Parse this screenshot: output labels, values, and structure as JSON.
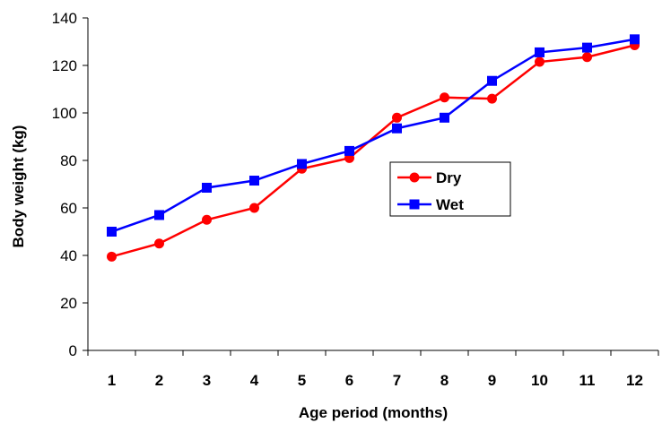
{
  "chart_data": {
    "type": "line",
    "x": [
      1,
      2,
      3,
      4,
      5,
      6,
      7,
      8,
      9,
      10,
      11,
      12
    ],
    "xlabel": "Age period (months)",
    "ylabel": "Body weight (kg)",
    "ylim": [
      0,
      140
    ],
    "yticks": [
      0,
      20,
      40,
      60,
      80,
      100,
      120,
      140
    ],
    "grid": false,
    "legend_position": "center-right",
    "series": [
      {
        "name": "Dry",
        "color": "#ff0000",
        "marker": "circle",
        "values": [
          39.5,
          45,
          55,
          60,
          76.5,
          81,
          98,
          106.5,
          106,
          121.5,
          123.5,
          128.5
        ]
      },
      {
        "name": "Wet",
        "color": "#0000ff",
        "marker": "square",
        "values": [
          50,
          57,
          68.5,
          71.5,
          78.5,
          84,
          93.5,
          98,
          113.5,
          125.5,
          127.5,
          131
        ]
      }
    ]
  }
}
